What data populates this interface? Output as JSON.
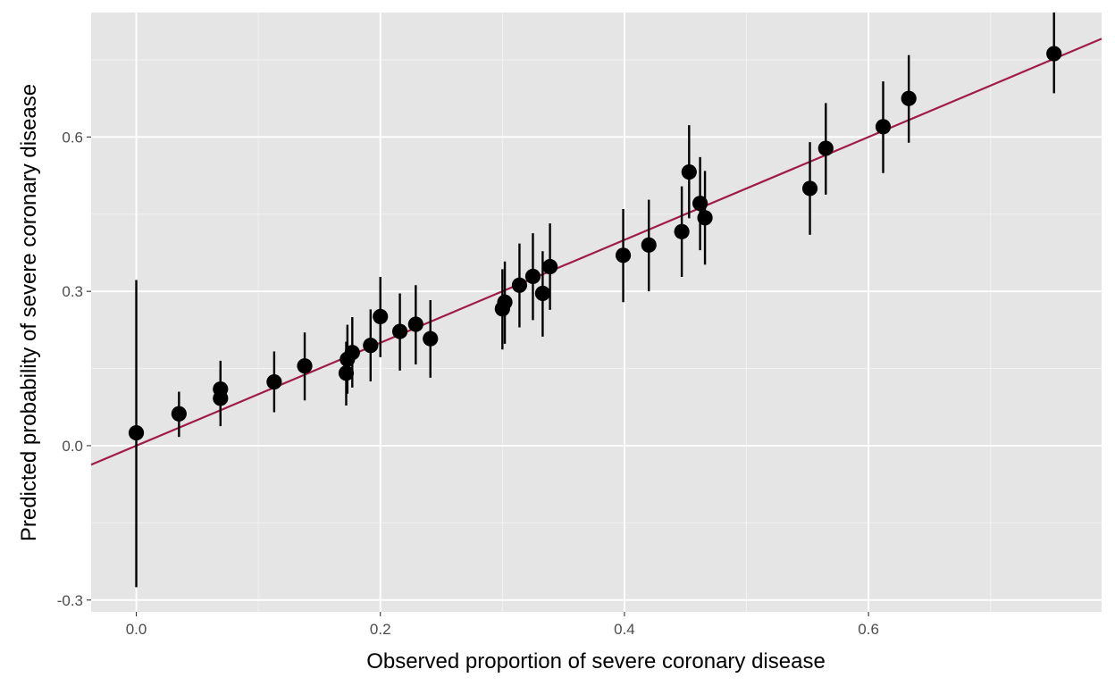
{
  "chart_data": {
    "type": "scatter",
    "title": "",
    "xlabel": "Observed proportion of severe coronary disease",
    "ylabel": "Predicted probability of severe coronary disease",
    "xlim": [
      -0.037,
      0.791
    ],
    "ylim": [
      -0.323,
      0.842
    ],
    "x_ticks": [
      0.0,
      0.2,
      0.4,
      0.6
    ],
    "x_tick_labels": [
      "0.0",
      "0.2",
      "0.4",
      "0.6"
    ],
    "y_ticks": [
      -0.3,
      0.0,
      0.3,
      0.6
    ],
    "y_tick_labels": [
      "-0.3",
      "0.0",
      "0.3",
      "0.6"
    ],
    "grid": true,
    "reference_line": {
      "type": "identity",
      "intercept": 0,
      "slope": 1,
      "color": "#a01c48"
    },
    "point_color": "#000000",
    "points": [
      {
        "x": 0.0,
        "y": 0.025,
        "lo": -0.275,
        "hi": 0.322
      },
      {
        "x": 0.035,
        "y": 0.062,
        "lo": 0.017,
        "hi": 0.105
      },
      {
        "x": 0.069,
        "y": 0.11,
        "lo": 0.055,
        "hi": 0.165
      },
      {
        "x": 0.069,
        "y": 0.092,
        "lo": 0.038,
        "hi": 0.148
      },
      {
        "x": 0.113,
        "y": 0.124,
        "lo": 0.065,
        "hi": 0.183
      },
      {
        "x": 0.138,
        "y": 0.155,
        "lo": 0.088,
        "hi": 0.22
      },
      {
        "x": 0.172,
        "y": 0.141,
        "lo": 0.078,
        "hi": 0.202
      },
      {
        "x": 0.173,
        "y": 0.168,
        "lo": 0.101,
        "hi": 0.235
      },
      {
        "x": 0.177,
        "y": 0.181,
        "lo": 0.113,
        "hi": 0.25
      },
      {
        "x": 0.192,
        "y": 0.195,
        "lo": 0.125,
        "hi": 0.265
      },
      {
        "x": 0.2,
        "y": 0.251,
        "lo": 0.172,
        "hi": 0.328
      },
      {
        "x": 0.216,
        "y": 0.222,
        "lo": 0.146,
        "hi": 0.296
      },
      {
        "x": 0.229,
        "y": 0.236,
        "lo": 0.158,
        "hi": 0.312
      },
      {
        "x": 0.241,
        "y": 0.208,
        "lo": 0.132,
        "hi": 0.283
      },
      {
        "x": 0.3,
        "y": 0.266,
        "lo": 0.187,
        "hi": 0.343
      },
      {
        "x": 0.302,
        "y": 0.279,
        "lo": 0.198,
        "hi": 0.358
      },
      {
        "x": 0.314,
        "y": 0.312,
        "lo": 0.23,
        "hi": 0.393
      },
      {
        "x": 0.325,
        "y": 0.329,
        "lo": 0.244,
        "hi": 0.413
      },
      {
        "x": 0.333,
        "y": 0.296,
        "lo": 0.212,
        "hi": 0.378
      },
      {
        "x": 0.339,
        "y": 0.348,
        "lo": 0.264,
        "hi": 0.432
      },
      {
        "x": 0.399,
        "y": 0.37,
        "lo": 0.279,
        "hi": 0.46
      },
      {
        "x": 0.42,
        "y": 0.39,
        "lo": 0.3,
        "hi": 0.478
      },
      {
        "x": 0.447,
        "y": 0.416,
        "lo": 0.328,
        "hi": 0.504
      },
      {
        "x": 0.453,
        "y": 0.532,
        "lo": 0.442,
        "hi": 0.623
      },
      {
        "x": 0.462,
        "y": 0.471,
        "lo": 0.38,
        "hi": 0.561
      },
      {
        "x": 0.466,
        "y": 0.443,
        "lo": 0.352,
        "hi": 0.534
      },
      {
        "x": 0.552,
        "y": 0.5,
        "lo": 0.41,
        "hi": 0.59
      },
      {
        "x": 0.565,
        "y": 0.578,
        "lo": 0.488,
        "hi": 0.666
      },
      {
        "x": 0.612,
        "y": 0.62,
        "lo": 0.53,
        "hi": 0.708
      },
      {
        "x": 0.633,
        "y": 0.675,
        "lo": 0.589,
        "hi": 0.759
      },
      {
        "x": 0.752,
        "y": 0.762,
        "lo": 0.685,
        "hi": 0.842
      }
    ]
  }
}
